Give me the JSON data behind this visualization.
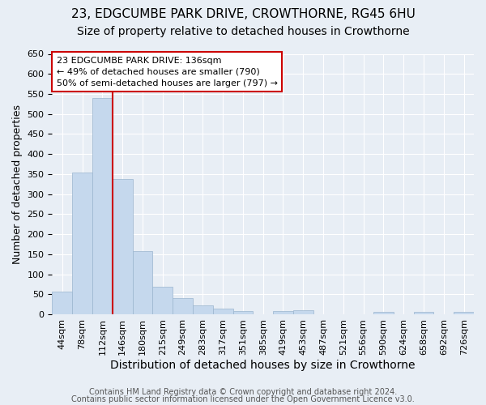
{
  "title": "23, EDGCUMBE PARK DRIVE, CROWTHORNE, RG45 6HU",
  "subtitle": "Size of property relative to detached houses in Crowthorne",
  "xlabel": "Distribution of detached houses by size in Crowthorne",
  "ylabel": "Number of detached properties",
  "categories": [
    "44sqm",
    "78sqm",
    "112sqm",
    "146sqm",
    "180sqm",
    "215sqm",
    "249sqm",
    "283sqm",
    "317sqm",
    "351sqm",
    "385sqm",
    "419sqm",
    "453sqm",
    "487sqm",
    "521sqm",
    "556sqm",
    "590sqm",
    "624sqm",
    "658sqm",
    "692sqm",
    "726sqm"
  ],
  "values": [
    57,
    353,
    540,
    338,
    157,
    68,
    40,
    23,
    15,
    8,
    0,
    9,
    10,
    0,
    0,
    0,
    5,
    0,
    5,
    0,
    5
  ],
  "bar_color": "#c5d8ed",
  "bar_edge_color": "#9ab5ce",
  "vline_color": "#cc0000",
  "annotation_text": "23 EDGCUMBE PARK DRIVE: 136sqm\n← 49% of detached houses are smaller (790)\n50% of semi-detached houses are larger (797) →",
  "annotation_box_color": "#ffffff",
  "annotation_box_edge": "#cc0000",
  "ylim": [
    0,
    650
  ],
  "yticks": [
    0,
    50,
    100,
    150,
    200,
    250,
    300,
    350,
    400,
    450,
    500,
    550,
    600,
    650
  ],
  "bg_color": "#e8eef5",
  "plot_bg_color": "#e8eef5",
  "grid_color": "#ffffff",
  "footer1": "Contains HM Land Registry data © Crown copyright and database right 2024.",
  "footer2": "Contains public sector information licensed under the Open Government Licence v3.0.",
  "title_fontsize": 11,
  "subtitle_fontsize": 10,
  "xlabel_fontsize": 10,
  "ylabel_fontsize": 9,
  "tick_fontsize": 8,
  "footer_fontsize": 7,
  "bin_width": 34
}
